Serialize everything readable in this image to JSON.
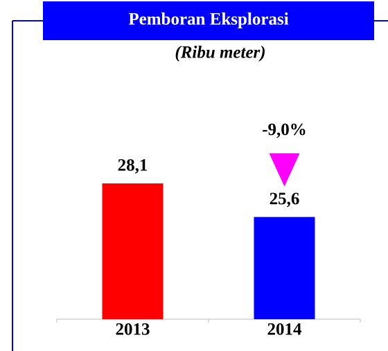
{
  "chart_data": {
    "type": "bar",
    "title": "Pemboran Eksplorasi",
    "subtitle": "(Ribu meter)",
    "categories": [
      "2013",
      "2014"
    ],
    "values": [
      28.1,
      25.6
    ],
    "value_labels": [
      "28,1",
      "25,6"
    ],
    "colors": [
      "#ff0000",
      "#0000ff"
    ],
    "ylim": [
      18,
      30
    ],
    "annotation": {
      "text": "-9,0%",
      "color": "#ff00ff"
    }
  }
}
